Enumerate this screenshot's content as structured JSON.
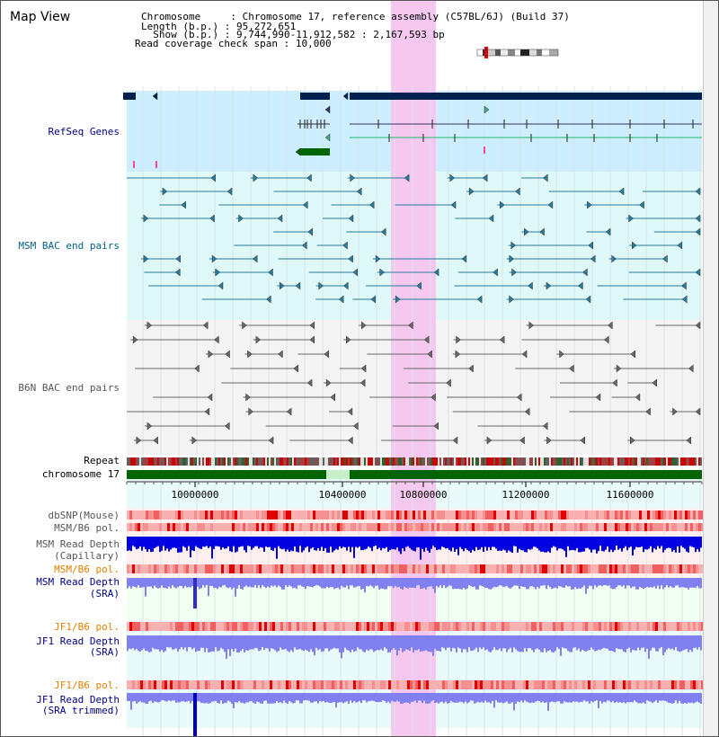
{
  "title": "Map View",
  "info": {
    "chromosome_key": "Chromosome    ",
    "chromosome_value": "Chromosome 17, reference assembly (C57BL/6J) (Build 37)",
    "length_key": "Length (b.p.)",
    "length_value": "95,272,651",
    "show_key": "  Show (b.p.)",
    "show_value": "9,744,990-11,912,582 : 2,167,593 bp",
    "read_key": "Read coverage check span",
    "read_value": "10,000"
  },
  "track_labels": {
    "refseq": "RefSeq Genes",
    "msm_bac": "MSM BAC end pairs",
    "b6n_bac": "B6N BAC end pairs",
    "repeat": "Repeat",
    "chromosome": "chromosome 17",
    "dbsnp": "dbSNP(Mouse)",
    "msm_b6_pol": "MSM/B6 pol.",
    "msm_depth_cap_1": "MSM Read Depth",
    "msm_depth_cap_2": "(Capillary)",
    "msm_b6_pol_2": "MSM/B6 pol.",
    "msm_depth_sra_1": "MSM Read Depth",
    "msm_depth_sra_2": "(SRA)",
    "jf1_b6_pol": "JF1/B6 pol.",
    "jf1_depth_sra_1": "JF1 Read Depth",
    "jf1_depth_sra_2": "(SRA)",
    "jf1_b6_pol_2": "JF1/B6 pol.",
    "jf1_depth_trim_1": "JF1 Read Depth",
    "jf1_depth_trim_2": "(SRA trimmed)"
  },
  "ruler": {
    "ticks": [
      "10000000",
      "10400000",
      "10800000",
      "11200000",
      "11600000"
    ]
  },
  "colors": {
    "label_navy": "#000080",
    "label_teal": "#005f7f",
    "label_gray": "#555555",
    "label_orange": "#e08000",
    "highlight": "#f6c8f0",
    "refseq_bg": "#cceeff",
    "msm_bg": "#dff8f8",
    "b6n_bg": "#f4f4f4",
    "gene_navy": "#002050",
    "chromosome_green": "#006400",
    "depth_blue": "#0000e0",
    "depth_light": "#8080f0"
  }
}
